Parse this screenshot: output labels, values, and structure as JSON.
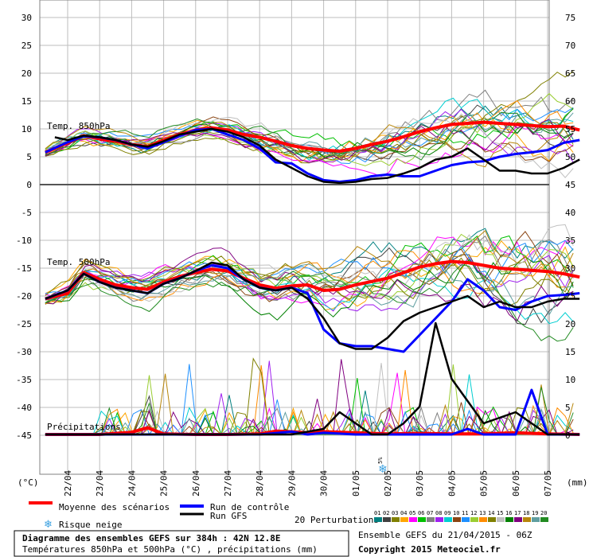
{
  "chart_data": {
    "type": "line",
    "title": "Diagramme des ensembles GEFS sur 384h : 42N 12.8E",
    "subtitle": "Températures 850hPa et 500hPa (°C) , précipitations (mm)",
    "run_info": "Ensemble GEFS du 21/04/2015 - 06Z",
    "copyright": "Copyright 2015 Meteociel.fr",
    "left_axis_unit": "(°C)",
    "right_axis_unit": "(mm)",
    "left_ticks": [
      "30",
      "25",
      "20",
      "15",
      "10",
      "5",
      "0",
      "-5",
      "-10",
      "-15",
      "-20",
      "-25",
      "-30",
      "-35",
      "-40",
      "-45"
    ],
    "right_ticks": [
      "75",
      "70",
      "65",
      "60",
      "55",
      "50",
      "45",
      "40",
      "35",
      "30",
      "25",
      "20",
      "15",
      "10",
      "5",
      "0"
    ],
    "dates": [
      "22/04",
      "23/04",
      "24/04",
      "25/04",
      "26/04",
      "27/04",
      "28/04",
      "29/04",
      "30/04",
      "01/05",
      "02/05",
      "03/05",
      "04/05",
      "05/05",
      "06/05",
      "07/05"
    ],
    "panel_labels": {
      "t850": "Temp. 850hPa",
      "t500": "Temp. 500hPa",
      "precip": "Précipitations"
    },
    "snow_marker": {
      "label": "5%",
      "date_index": 10.0
    },
    "legend": {
      "mean": "Moyenne des scénarios",
      "control": "Run de contrôle",
      "gfs": "Run GFS",
      "snow": "Risque neige",
      "perturbations": "20 Perturbations",
      "pert_numbers": [
        "01",
        "02",
        "03",
        "04",
        "05",
        "06",
        "07",
        "08",
        "09",
        "10",
        "11",
        "12",
        "13",
        "14",
        "15",
        "16",
        "17",
        "18",
        "19",
        "20"
      ]
    },
    "colors": {
      "mean": "#ff0000",
      "control": "#0000ff",
      "gfs": "#000000",
      "perturbations": [
        "#008080",
        "#404040",
        "#808000",
        "#ffa500",
        "#ff00ff",
        "#00c000",
        "#808080",
        "#a020f0",
        "#00ced1",
        "#8b4513",
        "#1e90ff",
        "#9acd32",
        "#ff8c00",
        "#808000",
        "#c0c0c0",
        "#008000",
        "#800080",
        "#b8860b",
        "#5f9ea0",
        "#228b22"
      ]
    },
    "series": [
      {
        "name": "Moyenne des scénarios",
        "panel": "t850",
        "x": [
          -0.7,
          0,
          0.5,
          1,
          1.5,
          2,
          2.5,
          3,
          3.5,
          4,
          4.5,
          5,
          5.5,
          6,
          6.5,
          7,
          7.5,
          8,
          8.5,
          9,
          9.5,
          10,
          10.5,
          11,
          11.5,
          12,
          12.5,
          13,
          13.5,
          14,
          14.5,
          15,
          15.5,
          16
        ],
        "y": [
          5.8,
          7.5,
          8.8,
          8.2,
          7.8,
          7.2,
          6.8,
          8.0,
          9.0,
          9.8,
          10.2,
          9.8,
          9.0,
          8.5,
          7.8,
          7.0,
          6.5,
          6.2,
          6.0,
          6.5,
          7.2,
          7.8,
          8.6,
          9.5,
          10.2,
          10.8,
          11.0,
          11.2,
          11.0,
          10.8,
          10.6,
          10.4,
          10.5,
          9.8
        ]
      },
      {
        "name": "Run de contrôle",
        "panel": "t850",
        "x": [
          -0.7,
          0,
          0.5,
          1,
          1.5,
          2,
          2.5,
          3,
          3.5,
          4,
          4.5,
          5,
          5.5,
          6,
          6.5,
          7,
          7.5,
          8,
          8.5,
          9,
          9.5,
          10,
          10.5,
          11,
          11.5,
          12,
          12.5,
          13,
          13.5,
          14,
          14.5,
          15,
          15.5,
          16
        ],
        "y": [
          5.8,
          7.6,
          8.7,
          8.5,
          8.0,
          7.2,
          6.5,
          7.6,
          8.8,
          9.8,
          10.0,
          9.0,
          8.0,
          6.5,
          4.0,
          3.8,
          2.0,
          0.8,
          0.5,
          0.8,
          1.5,
          1.8,
          1.5,
          1.5,
          2.5,
          3.5,
          4.0,
          4.2,
          5.0,
          5.5,
          5.8,
          6.2,
          7.5,
          8.0
        ]
      },
      {
        "name": "Run GFS",
        "panel": "t850",
        "x": [
          -0.4,
          0,
          0.5,
          1,
          1.5,
          2,
          2.5,
          3,
          3.5,
          4,
          4.5,
          5,
          5.5,
          6,
          6.5,
          7,
          7.5,
          8,
          8.5,
          9,
          9.5,
          10,
          10.5,
          11,
          11.5,
          12,
          12.5,
          13,
          13.5,
          14,
          14.5,
          15,
          15.5,
          16
        ],
        "y": [
          8.5,
          8.0,
          8.8,
          8.5,
          8.0,
          7.2,
          6.8,
          7.8,
          9.0,
          9.5,
          10.0,
          9.5,
          8.5,
          7.0,
          4.5,
          3.0,
          1.5,
          0.5,
          0.3,
          0.5,
          1.0,
          1.2,
          2.0,
          3.0,
          4.5,
          5.0,
          6.5,
          4.5,
          2.5,
          2.5,
          2.0,
          2.0,
          3.0,
          4.5
        ]
      },
      {
        "name": "Moyenne des scénarios",
        "panel": "t500",
        "x": [
          -0.7,
          0,
          0.5,
          1,
          1.5,
          2,
          2.5,
          3,
          3.5,
          4,
          4.5,
          5,
          5.5,
          6,
          6.5,
          7,
          7.5,
          8,
          8.5,
          9,
          9.5,
          10,
          10.5,
          11,
          11.5,
          12,
          12.5,
          13,
          13.5,
          14,
          14.5,
          15,
          15.5,
          16
        ],
        "y": [
          -20.5,
          -19.5,
          -15.8,
          -17.0,
          -18.0,
          -18.5,
          -18.8,
          -17.5,
          -16.5,
          -15.8,
          -15.2,
          -15.5,
          -16.8,
          -18.0,
          -18.6,
          -18.2,
          -18.0,
          -19.0,
          -18.8,
          -18.0,
          -17.4,
          -16.8,
          -15.8,
          -14.8,
          -14.2,
          -13.8,
          -14.0,
          -14.5,
          -15.0,
          -15.2,
          -15.4,
          -15.6,
          -16.0,
          -16.6
        ]
      },
      {
        "name": "Run de contrôle",
        "panel": "t500",
        "x": [
          -0.7,
          0,
          0.5,
          1,
          1.5,
          2,
          2.5,
          3,
          3.5,
          4,
          4.5,
          5,
          5.5,
          6,
          6.5,
          7,
          7.5,
          8,
          8.5,
          9,
          9.5,
          10,
          10.5,
          11,
          11.5,
          12,
          12.5,
          13,
          13.5,
          14,
          14.5,
          15,
          15.5,
          16
        ],
        "y": [
          -20.5,
          -19.0,
          -16.0,
          -17.5,
          -18.5,
          -19.0,
          -19.5,
          -17.8,
          -16.8,
          -15.5,
          -14.5,
          -15.0,
          -17.0,
          -18.5,
          -19.0,
          -18.5,
          -19.5,
          -26.0,
          -28.5,
          -29.0,
          -29.0,
          -29.5,
          -30.0,
          -27.0,
          -24.0,
          -21.0,
          -17.0,
          -19.0,
          -22.0,
          -22.5,
          -21.0,
          -20.0,
          -19.8,
          -19.5
        ]
      },
      {
        "name": "Run GFS",
        "panel": "t500",
        "x": [
          -0.7,
          0,
          0.5,
          1,
          1.5,
          2,
          2.5,
          3,
          3.5,
          4,
          4.5,
          5,
          5.5,
          6,
          6.5,
          7,
          7.5,
          8,
          8.5,
          9,
          9.5,
          10,
          10.5,
          11,
          11.5,
          12,
          12.5,
          13,
          13.5,
          14,
          14.5,
          15,
          15.5,
          16
        ],
        "y": [
          -20.5,
          -19.0,
          -16.0,
          -17.5,
          -18.5,
          -19.0,
          -19.5,
          -17.8,
          -16.8,
          -15.5,
          -14.0,
          -14.5,
          -17.0,
          -18.5,
          -19.0,
          -18.5,
          -20.5,
          -24.0,
          -28.5,
          -29.5,
          -29.5,
          -27.5,
          -24.5,
          -23.0,
          -22.0,
          -21.0,
          -20.0,
          -22.0,
          -21.0,
          -22.0,
          -22.0,
          -21.0,
          -20.5,
          -20.5
        ]
      },
      {
        "name": "Moyenne des scénarios",
        "panel": "precip",
        "x": [
          -0.7,
          0,
          1,
          2,
          2.5,
          3,
          4,
          5,
          6,
          6.5,
          7,
          7.5,
          8,
          9,
          10,
          11,
          12,
          13,
          14,
          15,
          16
        ],
        "y": [
          0,
          0,
          0,
          0.4,
          1.2,
          0.1,
          0,
          0,
          0.1,
          0.6,
          0.5,
          0.3,
          0.5,
          0.3,
          0.1,
          0.2,
          0.1,
          0.1,
          0.3,
          0.1,
          0.0
        ]
      },
      {
        "name": "Run de contrôle",
        "panel": "precip",
        "x": [
          -0.7,
          0,
          1,
          2,
          3,
          4,
          5,
          6,
          7,
          7.5,
          8,
          9,
          10,
          11,
          12,
          12.5,
          13,
          13.5,
          14,
          14.5,
          15,
          16
        ],
        "y": [
          0,
          0,
          0,
          0,
          0,
          0,
          0,
          0,
          0.5,
          0,
          0.3,
          0,
          0,
          0,
          0,
          1,
          0,
          0,
          0,
          8,
          0,
          0
        ]
      },
      {
        "name": "Run GFS",
        "panel": "precip",
        "x": [
          -0.7,
          0,
          1,
          2,
          3,
          4,
          5,
          6,
          7,
          8,
          8.5,
          9,
          9.5,
          10,
          10.5,
          11,
          11.5,
          12,
          12.5,
          13,
          13.5,
          14,
          14.5,
          15,
          16
        ],
        "y": [
          0,
          0,
          0,
          0,
          0,
          0,
          0,
          0,
          0,
          1,
          4,
          2,
          0,
          0,
          2,
          5,
          20,
          10,
          6,
          2,
          3,
          4,
          2,
          0,
          0
        ]
      }
    ]
  }
}
